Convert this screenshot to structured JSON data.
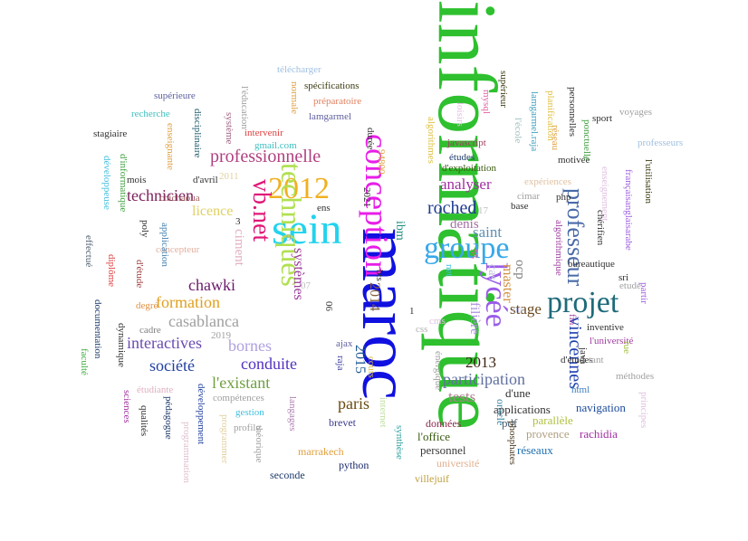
{
  "words": [
    {
      "text": "informatique",
      "color": "#2ec02e"
    },
    {
      "text": "maroc",
      "color": "#1010e0"
    },
    {
      "text": "sein",
      "color": "#22d3ee"
    },
    {
      "text": "groupe",
      "color": "#38a8e8"
    },
    {
      "text": "conception",
      "color": "#e81ee8"
    },
    {
      "text": "lycée",
      "color": "#9a5ce8"
    },
    {
      "text": "professeur",
      "color": "#4a6aa8"
    },
    {
      "text": "projet",
      "color": "#1e6a7a"
    },
    {
      "text": "2012",
      "color": "#f0b020"
    },
    {
      "text": "techniques",
      "color": "#b0e050"
    },
    {
      "text": "vb.net",
      "color": "#e01878"
    },
    {
      "text": "vincennes",
      "color": "#1e40b0"
    },
    {
      "text": "professionnelle",
      "color": "#b04080"
    },
    {
      "text": "technicien",
      "color": "#7a1e5a"
    },
    {
      "text": "roched",
      "color": "#1e3a90"
    },
    {
      "text": "analyser",
      "color": "#a030a0"
    },
    {
      "text": "chawki",
      "color": "#6a1a6a"
    },
    {
      "text": "formation",
      "color": "#e0a020"
    },
    {
      "text": "casablanca",
      "color": "#a0a0a0"
    },
    {
      "text": "interactives",
      "color": "#6a4ab0"
    },
    {
      "text": "bornes",
      "color": "#b0a0e0"
    },
    {
      "text": "société",
      "color": "#2040a0"
    },
    {
      "text": "conduite",
      "color": "#5030c0"
    },
    {
      "text": "l'existant",
      "color": "#70a040"
    },
    {
      "text": "paris",
      "color": "#6a4a10"
    },
    {
      "text": "participation",
      "color": "#6070a0"
    },
    {
      "text": "2013",
      "color": "#3a2010"
    },
    {
      "text": "tests",
      "color": "#b08090"
    },
    {
      "text": "stage",
      "color": "#6a4a20"
    },
    {
      "text": "saint",
      "color": "#6090b0"
    },
    {
      "text": "master",
      "color": "#d09040"
    },
    {
      "text": "denis",
      "color": "#a070a0"
    },
    {
      "text": "ocp",
      "color": "#808080"
    },
    {
      "text": "cas",
      "color": "#c0c0e0"
    },
    {
      "text": "filière",
      "color": "#b090e0"
    },
    {
      "text": "2014",
      "color": "#806040"
    },
    {
      "text": "2015",
      "color": "#1e5a90"
    },
    {
      "text": "systèmes",
      "color": "#9a3a9a"
    },
    {
      "text": "licence",
      "color": "#e0d060"
    },
    {
      "text": "ciment",
      "color": "#e0b0c0"
    },
    {
      "text": "ibm",
      "color": "#1e9080"
    },
    {
      "text": "d'une",
      "color": "#303030"
    },
    {
      "text": "applications",
      "color": "#303030"
    },
    {
      "text": "données",
      "color": "#8a2a4a"
    },
    {
      "text": "pdf",
      "color": "#506070"
    },
    {
      "text": "l'office",
      "color": "#3a5a10"
    },
    {
      "text": "personnel",
      "color": "#3a3a3a"
    },
    {
      "text": "navigation",
      "color": "#1a4a9a"
    },
    {
      "text": "parallèle",
      "color": "#b0c040"
    },
    {
      "text": "provence",
      "color": "#b0a080"
    },
    {
      "text": "rachidia",
      "color": "#a030a0"
    },
    {
      "text": "réseaux",
      "color": "#2070b0"
    },
    {
      "text": "oracle",
      "color": "#3080a0"
    },
    {
      "text": "université",
      "color": "#e0b090"
    },
    {
      "text": "villejuif",
      "color": "#c0a040"
    },
    {
      "text": "phosphates",
      "color": "#4a3a20"
    },
    {
      "text": "python",
      "color": "#1a2a6a"
    },
    {
      "text": "seconde",
      "color": "#1e3a6a"
    },
    {
      "text": "marrakech",
      "color": "#e0a040"
    },
    {
      "text": "internet",
      "color": "#c0e0a0"
    },
    {
      "text": "synthèse",
      "color": "#30a0a0"
    },
    {
      "text": "brevet",
      "color": "#3a3a90"
    },
    {
      "text": "langages",
      "color": "#b080b0"
    },
    {
      "text": "théorique",
      "color": "#a0a0a0"
    },
    {
      "text": "programmer",
      "color": "#e0d0a0"
    },
    {
      "text": "profile",
      "color": "#a0a0a0"
    },
    {
      "text": "gestion",
      "color": "#40c0e0"
    },
    {
      "text": "compétences",
      "color": "#a0a0a0"
    },
    {
      "text": "développement",
      "color": "#2040a0"
    },
    {
      "text": "programmation",
      "color": "#e0c0d0"
    },
    {
      "text": "pédagogue",
      "color": "#1e3a6a"
    },
    {
      "text": "étudiante",
      "color": "#e0b0c0"
    },
    {
      "text": "qualités",
      "color": "#303030"
    },
    {
      "text": "sciences",
      "color": "#a030a0"
    },
    {
      "text": "dynamique",
      "color": "#303030"
    },
    {
      "text": "faculté",
      "color": "#40b040"
    },
    {
      "text": "documentation",
      "color": "#1e3a6a"
    },
    {
      "text": "diplôme",
      "color": "#e04040"
    },
    {
      "text": "effectué",
      "color": "#506070"
    },
    {
      "text": "concepteur",
      "color": "#e0b0a0"
    },
    {
      "text": "degré",
      "color": "#e09040"
    },
    {
      "text": "cadre",
      "color": "#808080"
    },
    {
      "text": "2019",
      "color": "#a0a0a0"
    },
    {
      "text": "d'étude",
      "color": "#a04040"
    },
    {
      "text": "application",
      "color": "#4080b0"
    },
    {
      "text": "poly",
      "color": "#303030"
    },
    {
      "text": "d'avril",
      "color": "#303030"
    },
    {
      "text": "mois",
      "color": "#303030"
    },
    {
      "text": "chichaoua",
      "color": "#a06060"
    },
    {
      "text": "d'informatique",
      "color": "#40a040"
    },
    {
      "text": "développeuse",
      "color": "#40c0e0"
    },
    {
      "text": "stagiaire",
      "color": "#303030"
    },
    {
      "text": "enseignante",
      "color": "#e0a040"
    },
    {
      "text": "recherche",
      "color": "#40c0c0"
    },
    {
      "text": "supérieure",
      "color": "#6060a0"
    },
    {
      "text": "disciplinaire",
      "color": "#1e5a6a"
    },
    {
      "text": "l'éducation",
      "color": "#a0a0a0"
    },
    {
      "text": "système",
      "color": "#a06080"
    },
    {
      "text": "2011",
      "color": "#e0d0a0"
    },
    {
      "text": "télécharger",
      "color": "#a0c0e0"
    },
    {
      "text": "normale",
      "color": "#e0a040"
    },
    {
      "text": "spécifications",
      "color": "#3a3a10"
    },
    {
      "text": "préparatoire",
      "color": "#e08060"
    },
    {
      "text": "lamgarmel",
      "color": "#6060a0"
    },
    {
      "text": "intervenir",
      "color": "#e04040"
    },
    {
      "text": "gmail.com",
      "color": "#40c0c0"
    },
    {
      "text": "durée",
      "color": "#303030"
    },
    {
      "text": "ens",
      "color": "#303030"
    },
    {
      "text": "3",
      "color": "#303030"
    },
    {
      "text": "94800",
      "color": "#e0a040"
    },
    {
      "text": "2021",
      "color": "#303030"
    },
    {
      "text": "9",
      "color": "#a0a0a0"
    },
    {
      "text": "07",
      "color": "#c0c0c0"
    },
    {
      "text": "bts",
      "color": "#303030"
    },
    {
      "text": "06",
      "color": "#3a3a3a"
    },
    {
      "text": "ajax",
      "color": "#6060a0"
    },
    {
      "text": "raja",
      "color": "#4040a0"
    },
    {
      "text": "cours",
      "color": "#e0c040"
    },
    {
      "text": "1",
      "color": "#303030"
    },
    {
      "text": "cms",
      "color": "#e0c0e0"
    },
    {
      "text": "css",
      "color": "#b0b0b0"
    },
    {
      "text": "énergique",
      "color": "#a0a0a0"
    },
    {
      "text": "55",
      "color": "#e060a0"
    },
    {
      "text": "net",
      "color": "#40c0e0"
    },
    {
      "text": "17",
      "color": "#c0c0c0"
    },
    {
      "text": "06",
      "color": "#c0c0e0"
    },
    {
      "text": "algorithmes",
      "color": "#e0c040"
    },
    {
      "text": "loisirs",
      "color": "#e0c0e0"
    },
    {
      "text": "mysql",
      "color": "#e060a0"
    },
    {
      "text": "javascript",
      "color": "#a04060"
    },
    {
      "text": "études",
      "color": "#1e3a6a"
    },
    {
      "text": "d'exploitation",
      "color": "#3a5a10"
    },
    {
      "text": "supérieur",
      "color": "#3a3a10"
    },
    {
      "text": "l'école",
      "color": "#a0c0c0"
    },
    {
      "text": "lamgarmel.raja",
      "color": "#40a0c0"
    },
    {
      "text": "base",
      "color": "#303030"
    },
    {
      "text": "cimar",
      "color": "#a0a0a0"
    },
    {
      "text": "php",
      "color": "#303030"
    },
    {
      "text": "expériences",
      "color": "#e0c0a0"
    },
    {
      "text": "réseau",
      "color": "#e0a040"
    },
    {
      "text": "planification",
      "color": "#e0c040"
    },
    {
      "text": "personnelles",
      "color": "#303030"
    },
    {
      "text": "motivée",
      "color": "#303030"
    },
    {
      "text": "ponctuelle",
      "color": "#40a040"
    },
    {
      "text": "sport",
      "color": "#303030"
    },
    {
      "text": "voyages",
      "color": "#a0a0a0"
    },
    {
      "text": "professeurs",
      "color": "#a0c0e0"
    },
    {
      "text": "l'utilisation",
      "color": "#3a3a10"
    },
    {
      "text": "françaisanglaisarabe",
      "color": "#a060e0"
    },
    {
      "text": "enseignement",
      "color": "#e0c0e0"
    },
    {
      "text": "chérifien",
      "color": "#303030"
    },
    {
      "text": "bureautique",
      "color": "#303030"
    },
    {
      "text": "sri",
      "color": "#303030"
    },
    {
      "text": "partir",
      "color": "#a060e0"
    },
    {
      "text": "etude",
      "color": "#a0a0a0"
    },
    {
      "text": "algorithmique",
      "color": "#a040a0"
    },
    {
      "text": "fin",
      "color": "#a040a0"
    },
    {
      "text": "inventive",
      "color": "#303030"
    },
    {
      "text": "l'université",
      "color": "#a040a0"
    },
    {
      "text": "html",
      "color": "#4080c0"
    },
    {
      "text": "java",
      "color": "#303030"
    },
    {
      "text": "d'études",
      "color": "#303030"
    },
    {
      "text": "tant",
      "color": "#a0a0a0"
    },
    {
      "text": "rue",
      "color": "#a0c040"
    },
    {
      "text": "méthodes",
      "color": "#a0a0a0"
    },
    {
      "text": "principes",
      "color": "#e0c0e0"
    }
  ]
}
